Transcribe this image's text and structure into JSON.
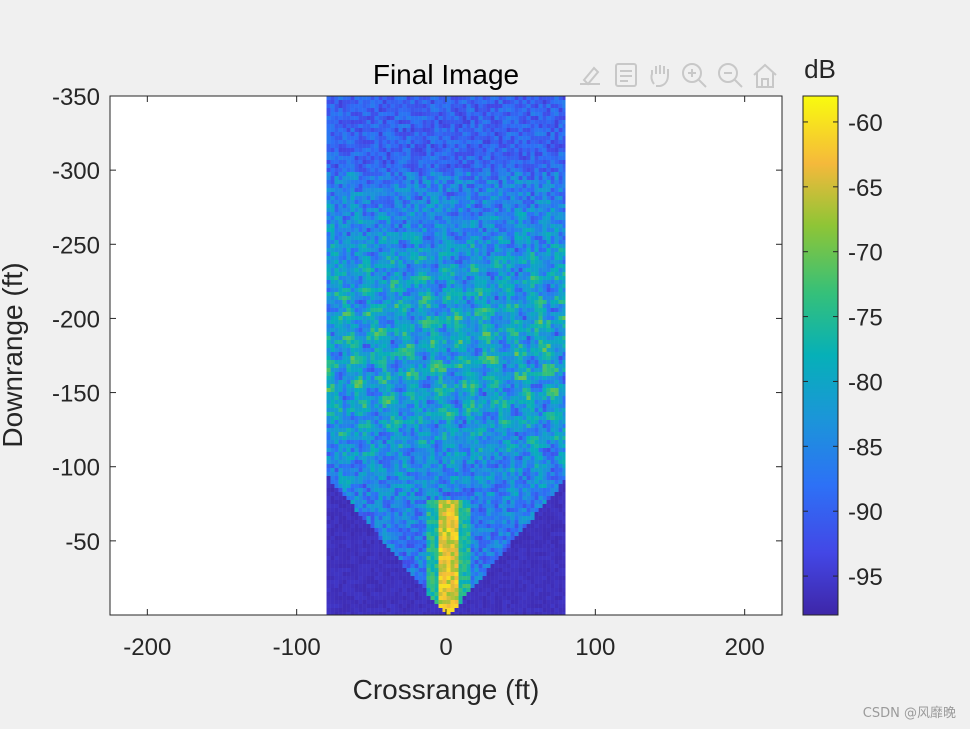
{
  "chart_data": {
    "type": "heatmap",
    "title": "Final Image",
    "xlabel": "Crossrange (ft)",
    "ylabel": "Downrange (ft)",
    "xlim": [
      -225,
      225
    ],
    "ylim": [
      -350,
      0
    ],
    "y_reversed": true,
    "x_ticks": [
      -200,
      -100,
      0,
      100,
      200
    ],
    "x_tick_labels": [
      "-200",
      "-100",
      "0",
      "100",
      "200"
    ],
    "y_ticks": [
      -350,
      -300,
      -250,
      -200,
      -150,
      -100,
      -50
    ],
    "y_tick_labels": [
      "-350",
      "-300",
      "-250",
      "-200",
      "-150",
      "-100",
      "-50"
    ],
    "image_extent": {
      "x": [
        -80,
        80
      ],
      "y": [
        -350,
        0
      ]
    },
    "colorbar": {
      "label": "dB",
      "range": [
        -98,
        -58
      ],
      "colormap": "parula",
      "ticks": [
        -60,
        -65,
        -70,
        -75,
        -80,
        -85,
        -90,
        -95
      ],
      "tick_labels": [
        "-60",
        "-65",
        "-70",
        "-75",
        "-80",
        "-85",
        "-90",
        "-95"
      ]
    },
    "grid": false
  },
  "toolbar": {
    "icons": [
      "brush-icon",
      "data-tips-icon",
      "pan-hand-icon",
      "zoom-in-icon",
      "zoom-out-icon",
      "home-icon"
    ]
  },
  "watermark": "CSDN @风靡晚",
  "colors": {
    "figure_bg": "#f0f0f0",
    "axes_bg": "#ffffff",
    "axis_line": "#262626"
  }
}
